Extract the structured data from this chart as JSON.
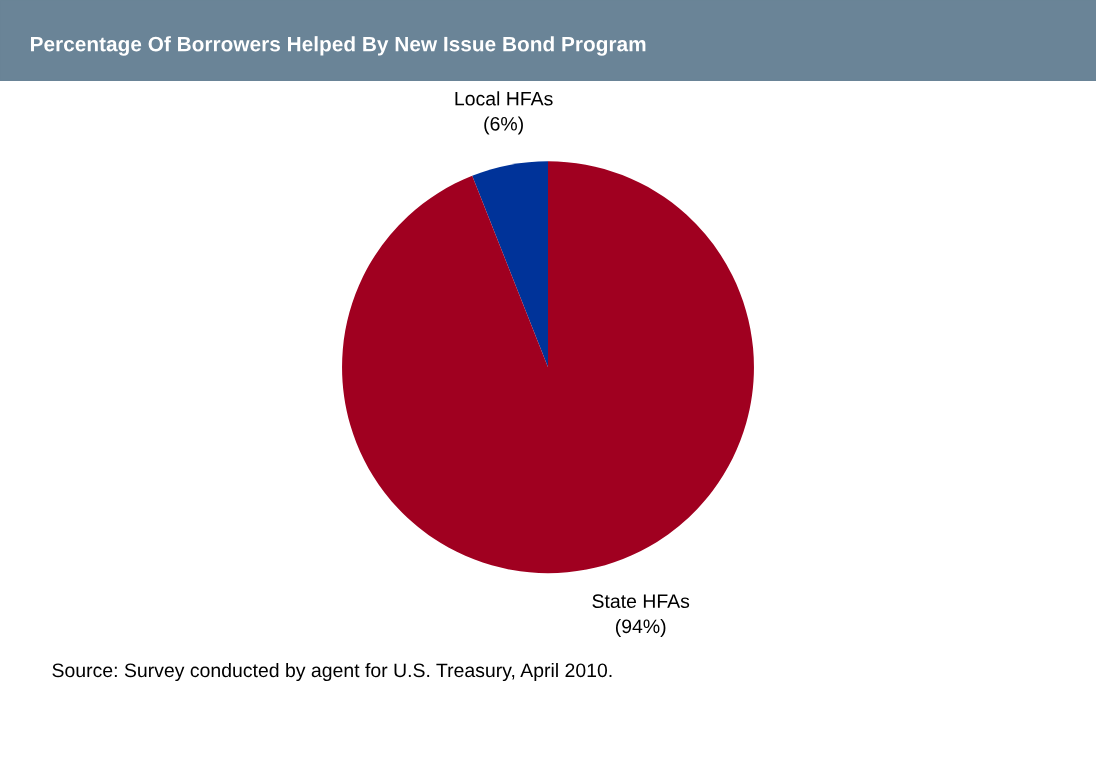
{
  "chart_data": {
    "type": "pie",
    "title": "Percentage Of Borrowers Helped By New Issue Bond Program",
    "categories": [
      "Local HFAs",
      "State HFAs"
    ],
    "values": [
      6,
      94
    ],
    "value_labels": [
      "(6%)",
      "(94%)"
    ],
    "colors": [
      "#003399",
      "#a00020"
    ],
    "annotations": [
      "Source: Survey conducted by agent for U.S. Treasury, April 2010."
    ]
  }
}
